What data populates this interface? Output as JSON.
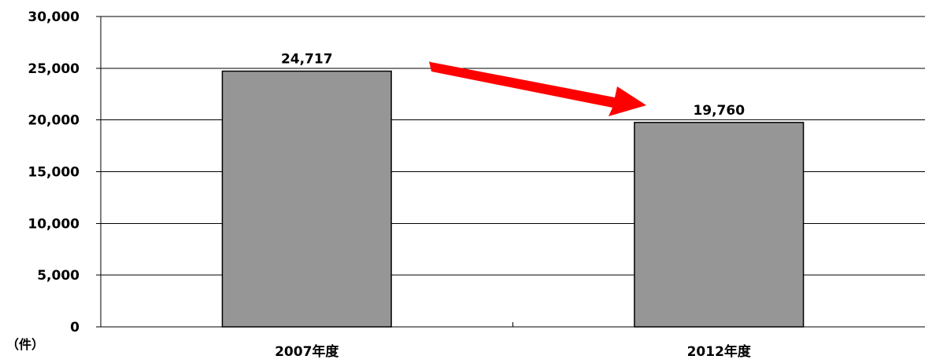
{
  "chart_data": {
    "type": "bar",
    "categories": [
      "2007年度",
      "2012年度"
    ],
    "values": [
      24717,
      19760
    ],
    "data_labels": [
      "24,717",
      "19,760"
    ],
    "y_ticks": [
      0,
      5000,
      10000,
      15000,
      20000,
      25000,
      30000
    ],
    "y_tick_labels": [
      "0",
      "5,000",
      "10,000",
      "15,000",
      "20,000",
      "25,000",
      "30,000"
    ],
    "ylim": [
      0,
      30000
    ],
    "unit_label": "（件）",
    "title": "",
    "xlabel": "",
    "ylabel": "",
    "grid": true,
    "legend": "none",
    "bar_color": "#969696",
    "bar_edge_color": "#000000",
    "trend_arrow": {
      "direction": "decrease",
      "color": "#ff0000"
    }
  }
}
